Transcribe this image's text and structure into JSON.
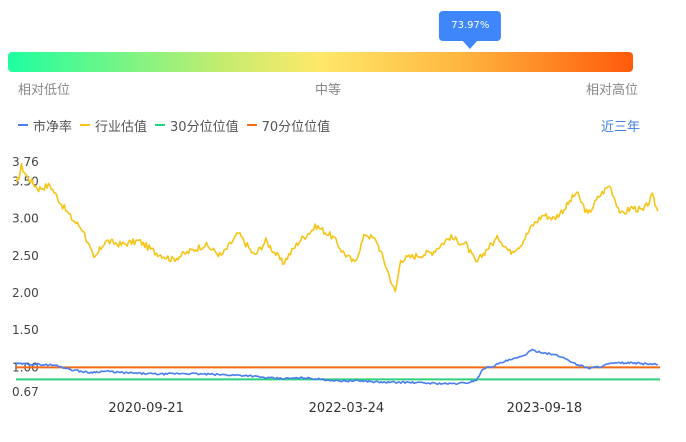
{
  "gauge": {
    "value_label": "73.97%",
    "value": 0.7397,
    "low_label": "相对低位",
    "mid_label": "中等",
    "high_label": "相对高位"
  },
  "range_label": "近三年",
  "chart_data": {
    "type": "line",
    "x": [
      "2020-09-21",
      "2022-03-24",
      "2023-09-18"
    ],
    "x_range": [
      "2019-09-30",
      "2024-07-31"
    ],
    "y_ticks": [
      "3.76",
      "3.50",
      "3.00",
      "2.50",
      "2.00",
      "1.50",
      "1.00",
      "0.67"
    ],
    "ylim": [
      0.67,
      3.76
    ],
    "series": [
      {
        "name": "市净率",
        "color": "#4a7ef0",
        "points": [
          [
            "2019-10-01",
            1.05
          ],
          [
            "2019-12-01",
            1.04
          ],
          [
            "2020-01-15",
            1.03
          ],
          [
            "2020-03-01",
            0.97
          ],
          [
            "2020-04-15",
            0.93
          ],
          [
            "2020-06-01",
            0.95
          ],
          [
            "2020-07-15",
            0.93
          ],
          [
            "2020-09-01",
            0.92
          ],
          [
            "2020-11-01",
            0.91
          ],
          [
            "2021-01-01",
            0.92
          ],
          [
            "2021-03-01",
            0.91
          ],
          [
            "2021-05-01",
            0.9
          ],
          [
            "2021-07-01",
            0.89
          ],
          [
            "2021-08-15",
            0.86
          ],
          [
            "2021-10-01",
            0.85
          ],
          [
            "2021-12-01",
            0.86
          ],
          [
            "2022-01-15",
            0.84
          ],
          [
            "2022-03-01",
            0.82
          ],
          [
            "2022-05-01",
            0.82
          ],
          [
            "2022-07-01",
            0.8
          ],
          [
            "2022-09-01",
            0.8
          ],
          [
            "2022-11-01",
            0.79
          ],
          [
            "2023-01-01",
            0.78
          ],
          [
            "2023-02-15",
            0.79
          ],
          [
            "2023-03-15",
            0.83
          ],
          [
            "2023-04-05",
            0.99
          ],
          [
            "2023-05-01",
            1.02
          ],
          [
            "2023-06-01",
            1.08
          ],
          [
            "2023-07-15",
            1.14
          ],
          [
            "2023-08-15",
            1.23
          ],
          [
            "2023-09-15",
            1.2
          ],
          [
            "2023-10-15",
            1.17
          ],
          [
            "2023-11-15",
            1.12
          ],
          [
            "2023-12-15",
            1.04
          ],
          [
            "2024-01-20",
            0.99
          ],
          [
            "2024-02-15",
            1.01
          ],
          [
            "2024-03-15",
            1.05
          ],
          [
            "2024-04-15",
            1.06
          ],
          [
            "2024-05-15",
            1.06
          ],
          [
            "2024-06-15",
            1.05
          ],
          [
            "2024-07-25",
            1.04
          ]
        ]
      },
      {
        "name": "行业估值",
        "color": "#f5c518",
        "points": [
          [
            "2019-10-01",
            3.45
          ],
          [
            "2019-10-15",
            3.7
          ],
          [
            "2019-11-01",
            3.55
          ],
          [
            "2019-12-01",
            3.4
          ],
          [
            "2020-01-01",
            3.45
          ],
          [
            "2020-02-01",
            3.2
          ],
          [
            "2020-03-01",
            3.0
          ],
          [
            "2020-04-01",
            2.85
          ],
          [
            "2020-05-01",
            2.45
          ],
          [
            "2020-06-01",
            2.7
          ],
          [
            "2020-07-15",
            2.65
          ],
          [
            "2020-09-01",
            2.7
          ],
          [
            "2020-10-15",
            2.55
          ],
          [
            "2020-12-01",
            2.45
          ],
          [
            "2021-01-15",
            2.55
          ],
          [
            "2021-03-01",
            2.65
          ],
          [
            "2021-04-15",
            2.5
          ],
          [
            "2021-06-01",
            2.8
          ],
          [
            "2021-07-15",
            2.5
          ],
          [
            "2021-08-15",
            2.7
          ],
          [
            "2021-10-01",
            2.4
          ],
          [
            "2021-11-15",
            2.7
          ],
          [
            "2022-01-01",
            2.9
          ],
          [
            "2022-02-15",
            2.75
          ],
          [
            "2022-03-15",
            2.55
          ],
          [
            "2022-04-15",
            2.4
          ],
          [
            "2022-05-15",
            2.8
          ],
          [
            "2022-06-15",
            2.7
          ],
          [
            "2022-07-15",
            2.3
          ],
          [
            "2022-08-05",
            2.0
          ],
          [
            "2022-08-20",
            2.45
          ],
          [
            "2022-10-01",
            2.5
          ],
          [
            "2022-11-15",
            2.55
          ],
          [
            "2023-01-01",
            2.75
          ],
          [
            "2023-02-15",
            2.65
          ],
          [
            "2023-03-15",
            2.4
          ],
          [
            "2023-04-15",
            2.6
          ],
          [
            "2023-05-15",
            2.75
          ],
          [
            "2023-06-15",
            2.55
          ],
          [
            "2023-07-15",
            2.65
          ],
          [
            "2023-08-15",
            2.9
          ],
          [
            "2023-09-15",
            3.05
          ],
          [
            "2023-10-15",
            3.0
          ],
          [
            "2023-11-15",
            3.15
          ],
          [
            "2023-12-15",
            3.35
          ],
          [
            "2024-01-15",
            3.05
          ],
          [
            "2024-02-15",
            3.3
          ],
          [
            "2024-03-15",
            3.45
          ],
          [
            "2024-04-15",
            3.05
          ],
          [
            "2024-05-15",
            3.15
          ],
          [
            "2024-06-15",
            3.1
          ],
          [
            "2024-07-10",
            3.3
          ],
          [
            "2024-07-25",
            3.1
          ]
        ]
      },
      {
        "name": "30分位位值",
        "color": "#2ad27e",
        "value": 0.84
      },
      {
        "name": "70分位位值",
        "color": "#f46a12",
        "value": 1.0
      }
    ]
  }
}
